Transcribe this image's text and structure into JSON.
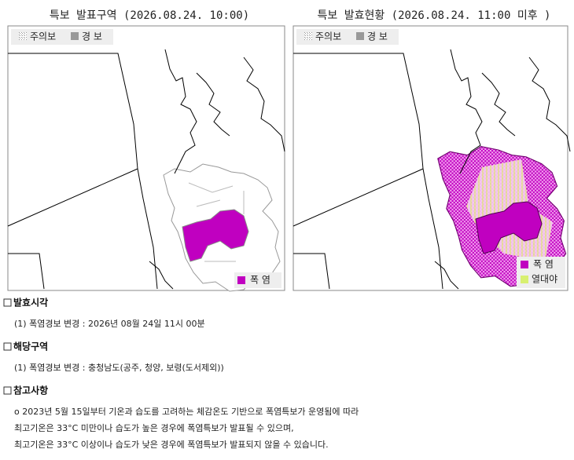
{
  "left_map": {
    "title": "특보 발표구역 (2026.08.24. 10:00)",
    "legend": [
      "주의보",
      "경 보"
    ],
    "region_legend": [
      "폭 염"
    ]
  },
  "right_map": {
    "title": "특보 발효현황 (2026.08.24. 11:00 미후 )",
    "legend": [
      "주의보",
      "경 보"
    ],
    "region_legend": [
      "폭 염",
      "열대야"
    ]
  },
  "sections": [
    {
      "heading": "발효시각",
      "lines": [
        "(1) 폭염경보 변경 : 2026년 08월 24일 11시 00분"
      ]
    },
    {
      "heading": "해당구역",
      "lines": [
        "(1) 폭염경보 변경 : 충청남도(공주, 청양, 보령(도서제외))"
      ]
    },
    {
      "heading": "참고사항",
      "lines": [
        "o 2023년 5월 15일부터 기온과 습도를 고려하는 체감온도 기반으로 폭염특보가 운영됨에 따라",
        "최고기온은 33°C 미만이나 습도가 높은 경우에 폭염특보가 발표될 수 있으며,",
        "최고기온은 33°C 이상이나 습도가 낮은 경우에 폭염특보가 발표되지 않을 수 있습니다."
      ]
    }
  ]
}
